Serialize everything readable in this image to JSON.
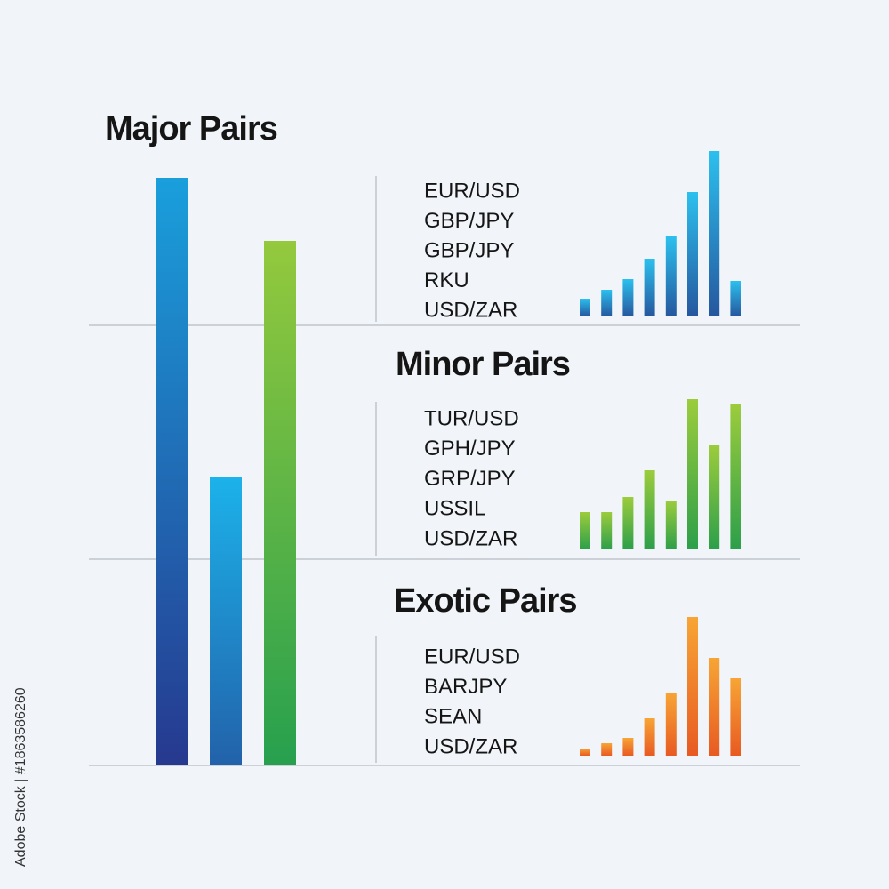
{
  "watermark": "Adobe Stock | #1863586260",
  "chart_data": [
    {
      "type": "bar",
      "categories": [
        null,
        null,
        null
      ],
      "values": [
        660,
        323,
        589
      ],
      "colors": [
        [
          "#1a9fdc",
          "#26398f"
        ],
        [
          "#1cb2ea",
          "#2262aa"
        ],
        [
          "#94c93d",
          "#27a04e"
        ]
      ],
      "ylim": [
        0,
        700
      ]
    },
    {
      "type": "bar",
      "title": "Major Pairs",
      "pairs": [
        "EUR/USD",
        "GBP/JPY",
        "GBP/JPY",
        "RKU",
        "USD/ZAR"
      ],
      "categories": [
        null,
        null,
        null,
        null,
        null,
        null,
        null,
        null
      ],
      "values": [
        20,
        30,
        42,
        65,
        90,
        140,
        186,
        40
      ],
      "color": [
        "#2cc0ee",
        "#25579e"
      ],
      "ylim": [
        0,
        200
      ]
    },
    {
      "type": "bar",
      "title": "Minor Pairs",
      "pairs": [
        "TUR/USD",
        "GPH/JPY",
        "GRP/JPY",
        "USSIL",
        "USD/ZAR"
      ],
      "categories": [
        null,
        null,
        null,
        null,
        null,
        null,
        null,
        null
      ],
      "values": [
        42,
        42,
        59,
        89,
        55,
        169,
        117,
        163
      ],
      "color": [
        "#9ccc3c",
        "#2c9f4a"
      ],
      "ylim": [
        0,
        200
      ]
    },
    {
      "type": "bar",
      "title": "Exotic Pairs",
      "pairs": [
        "EUR/USD",
        "BARJPY",
        "SEAN",
        "USD/ZAR"
      ],
      "categories": [
        null,
        null,
        null,
        null,
        null,
        null,
        null,
        null
      ],
      "values": [
        8,
        14,
        20,
        42,
        71,
        156,
        110,
        87
      ],
      "color": [
        "#f7a535",
        "#e85a22"
      ],
      "ylim": [
        0,
        200
      ]
    }
  ]
}
